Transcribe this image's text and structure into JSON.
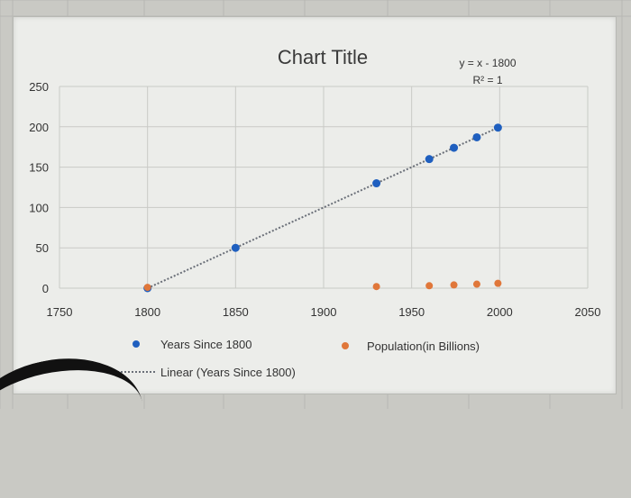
{
  "chart_data": {
    "type": "scatter",
    "title": "Chart Title",
    "xlim": [
      1750,
      2050
    ],
    "ylim": [
      0,
      250
    ],
    "x_ticks": [
      "1750",
      "1800",
      "1850",
      "1900",
      "1950",
      "2000",
      "2050"
    ],
    "y_ticks": [
      "0",
      "50",
      "100",
      "150",
      "200",
      "250"
    ],
    "grid": true,
    "legend_position": "bottom",
    "trendline": {
      "equation": "y = x - 1800",
      "r_squared": "R² = 1",
      "name": "Linear (Years Since 1800)",
      "from": [
        1800,
        0
      ],
      "to": [
        2000,
        200
      ]
    },
    "series": [
      {
        "name": "Years Since 1800",
        "color": "#1f5fbf",
        "points": [
          [
            1800,
            0
          ],
          [
            1850,
            50
          ],
          [
            1930,
            130
          ],
          [
            1960,
            160
          ],
          [
            1974,
            174
          ],
          [
            1987,
            187
          ],
          [
            1999,
            199
          ]
        ]
      },
      {
        "name": "Population(in Billions)",
        "color": "#e0773a",
        "points": [
          [
            1800,
            1
          ],
          [
            1930,
            2
          ],
          [
            1960,
            3
          ],
          [
            1974,
            4
          ],
          [
            1987,
            5
          ],
          [
            1999,
            6
          ]
        ]
      }
    ]
  }
}
